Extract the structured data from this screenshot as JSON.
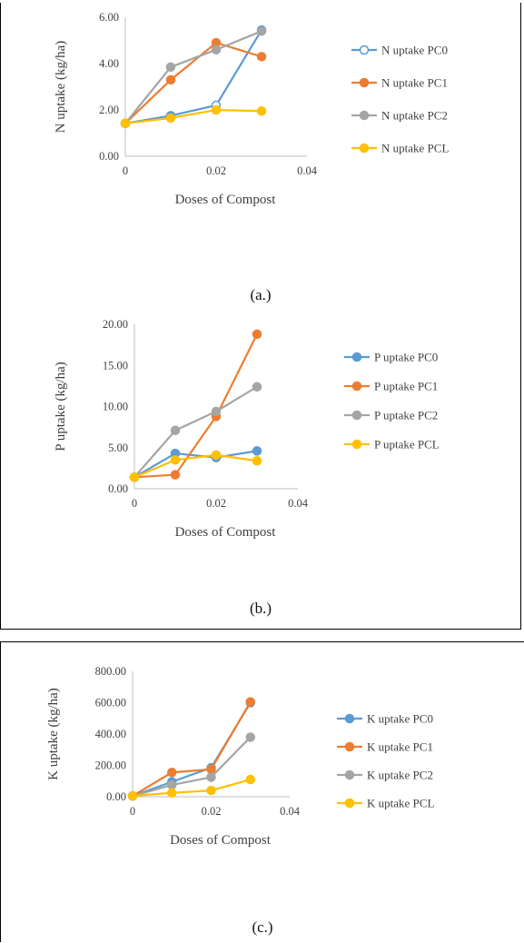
{
  "chart_data": [
    {
      "type": "line",
      "title": "",
      "xlabel": "Doses of Compost",
      "ylabel": "N uptake (kg/ha)",
      "xlim": [
        0,
        0.04
      ],
      "ylim": [
        0,
        6
      ],
      "xticks": [
        "0",
        "0.02",
        "0.04"
      ],
      "xtick_values": [
        0,
        0.02,
        0.04
      ],
      "yticks": [
        "0.00",
        "2.00",
        "4.00",
        "6.00"
      ],
      "ytick_values": [
        0,
        2,
        4,
        6
      ],
      "legend_position": "right",
      "grid": false,
      "caption": "(a.)",
      "series": [
        {
          "name": "N uptake PC0",
          "color": "#5B9BD5",
          "hollow": true,
          "x": [
            0,
            0.01,
            0.02,
            0.03
          ],
          "y": [
            1.42,
            1.75,
            2.2,
            5.45
          ]
        },
        {
          "name": "N uptake PC1",
          "color": "#ED7D31",
          "x": [
            0,
            0.01,
            0.02,
            0.03
          ],
          "y": [
            1.42,
            3.3,
            4.9,
            4.3
          ]
        },
        {
          "name": "N uptake PC2",
          "color": "#A5A5A5",
          "x": [
            0,
            0.01,
            0.02,
            0.03
          ],
          "y": [
            1.42,
            3.85,
            4.6,
            5.4
          ]
        },
        {
          "name": "N uptake PCL",
          "color": "#FFC000",
          "x": [
            0,
            0.01,
            0.02,
            0.03
          ],
          "y": [
            1.42,
            1.65,
            2.0,
            1.95
          ]
        }
      ]
    },
    {
      "type": "line",
      "title": "",
      "xlabel": "Doses of Compost",
      "ylabel": "P uptake (kg/ha)",
      "xlim": [
        0,
        0.04
      ],
      "ylim": [
        0,
        20
      ],
      "xticks": [
        "0",
        "0.02",
        "0.04"
      ],
      "xtick_values": [
        0,
        0.02,
        0.04
      ],
      "yticks": [
        "0.00",
        "5.00",
        "10.00",
        "15.00",
        "20.00"
      ],
      "ytick_values": [
        0,
        5,
        10,
        15,
        20
      ],
      "legend_position": "right",
      "grid": false,
      "caption": "(b.)",
      "series": [
        {
          "name": "P uptake PC0",
          "color": "#5B9BD5",
          "x": [
            0,
            0.01,
            0.02,
            0.03
          ],
          "y": [
            1.4,
            4.3,
            3.8,
            4.6
          ]
        },
        {
          "name": "P uptake PC1",
          "color": "#ED7D31",
          "x": [
            0,
            0.01,
            0.02,
            0.03
          ],
          "y": [
            1.4,
            1.7,
            8.8,
            18.8
          ]
        },
        {
          "name": "P uptake PC2",
          "color": "#A5A5A5",
          "x": [
            0,
            0.01,
            0.02,
            0.03
          ],
          "y": [
            1.4,
            7.1,
            9.4,
            12.4
          ]
        },
        {
          "name": "P uptake PCL",
          "color": "#FFC000",
          "x": [
            0,
            0.01,
            0.02,
            0.03
          ],
          "y": [
            1.4,
            3.5,
            4.1,
            3.4
          ]
        }
      ]
    },
    {
      "type": "line",
      "title": "",
      "xlabel": "Doses of Compost",
      "ylabel": "K uptake (kg/ha)",
      "xlim": [
        0,
        0.04
      ],
      "ylim": [
        0,
        800
      ],
      "xticks": [
        "0",
        "0.02",
        "0.04"
      ],
      "xtick_values": [
        0,
        0.02,
        0.04
      ],
      "yticks": [
        "0.00",
        "200.00",
        "400.00",
        "600.00",
        "800.00"
      ],
      "ytick_values": [
        0,
        200,
        400,
        600,
        800
      ],
      "legend_position": "right",
      "grid": false,
      "caption": "(c.)",
      "series": [
        {
          "name": "K uptake PC0",
          "color": "#5B9BD5",
          "x": [
            0,
            0.01,
            0.02,
            0.03
          ],
          "y": [
            5,
            95,
            185,
            600
          ]
        },
        {
          "name": "K uptake PC1",
          "color": "#ED7D31",
          "x": [
            0,
            0.01,
            0.02,
            0.03
          ],
          "y": [
            5,
            155,
            175,
            605
          ]
        },
        {
          "name": "K uptake PC2",
          "color": "#A5A5A5",
          "x": [
            0,
            0.01,
            0.02,
            0.03
          ],
          "y": [
            5,
            75,
            125,
            380
          ]
        },
        {
          "name": "K uptake PCL",
          "color": "#FFC000",
          "x": [
            0,
            0.01,
            0.02,
            0.03
          ],
          "y": [
            5,
            25,
            40,
            110
          ]
        }
      ]
    }
  ]
}
